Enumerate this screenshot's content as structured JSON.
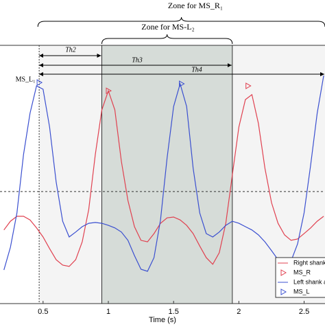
{
  "chart_data": {
    "type": "line",
    "xlabel": "Time (s)",
    "xlim": [
      0.17,
      2.66
    ],
    "ylim": [
      0,
      100
    ],
    "xticks": [
      0.5,
      1,
      1.5,
      2,
      2.5
    ],
    "x": [
      0.2,
      0.25,
      0.3,
      0.35,
      0.4,
      0.45,
      0.5,
      0.55,
      0.6,
      0.65,
      0.7,
      0.75,
      0.8,
      0.85,
      0.9,
      0.95,
      1.0,
      1.05,
      1.1,
      1.15,
      1.2,
      1.25,
      1.3,
      1.35,
      1.4,
      1.45,
      1.5,
      1.55,
      1.6,
      1.65,
      1.7,
      1.75,
      1.8,
      1.85,
      1.9,
      1.95,
      2.0,
      2.05,
      2.1,
      2.15,
      2.2,
      2.25,
      2.3,
      2.35,
      2.4,
      2.45,
      2.5,
      2.55,
      2.6,
      2.65
    ],
    "series": [
      {
        "name": "Right shank a",
        "color": "#e0404f",
        "marker": "line",
        "values": [
          28.5,
          31.9,
          33.8,
          33.8,
          32.4,
          29.3,
          25.8,
          21.3,
          17.0,
          14.9,
          14.4,
          17.0,
          23.9,
          36.4,
          57.7,
          75.0,
          82.4,
          75.0,
          55.1,
          39.9,
          29.8,
          24.5,
          23.9,
          27.1,
          31.1,
          33.2,
          33.5,
          32.4,
          30.3,
          27.1,
          22.3,
          17.8,
          15.2,
          19.7,
          31.1,
          49.7,
          68.4,
          79.0,
          80.9,
          69.7,
          52.4,
          39.1,
          31.1,
          26.6,
          24.5,
          25.0,
          27.1,
          29.3,
          31.9,
          33.8
        ]
      },
      {
        "name": "MS_R",
        "color": "#e0404f",
        "marker": "triangle",
        "x": [
          1.0,
          2.07
        ],
        "values": [
          82.4,
          84.3
        ]
      },
      {
        "name": "Left shank a",
        "color": "#3a4fd0",
        "marker": "line",
        "values": [
          13.0,
          21.8,
          35.1,
          57.7,
          73.7,
          84.3,
          83.0,
          68.4,
          47.1,
          31.9,
          25.8,
          27.7,
          29.8,
          31.1,
          31.4,
          31.1,
          30.3,
          29.3,
          27.7,
          24.5,
          18.6,
          13.3,
          12.5,
          17.8,
          32.4,
          56.4,
          76.3,
          85.1,
          76.3,
          52.4,
          35.1,
          27.1,
          25.8,
          27.7,
          30.3,
          31.9,
          31.1,
          29.8,
          28.5,
          26.6,
          23.9,
          20.5,
          17.0,
          15.2,
          16.5,
          23.1,
          35.1,
          53.7,
          73.7,
          88.3
        ]
      },
      {
        "name": "MS_L",
        "color": "#3a4fd0",
        "marker": "triangle",
        "x": [
          0.47,
          1.56
        ],
        "values": [
          85.6,
          85.1
        ]
      }
    ],
    "reference_x": 0.47,
    "reference_y": 43.4,
    "shaded_span": [
      0.95,
      1.95
    ],
    "annotations": {
      "zone_r": {
        "text": "Zone for MS_R₁",
        "span": [
          0.46,
          2.66
        ]
      },
      "zone_l": {
        "text": "Zone for MS-L₂",
        "span": [
          0.95,
          1.95
        ]
      },
      "th2": {
        "text": "Th2",
        "span": [
          0.47,
          0.95
        ]
      },
      "th3": {
        "text": "Th3",
        "span": [
          0.47,
          1.95
        ]
      },
      "th4": {
        "text": "Th4",
        "span": [
          0.47,
          2.66
        ]
      },
      "ms_l1": {
        "text": "MS_L₁",
        "x": 0.47
      }
    }
  }
}
